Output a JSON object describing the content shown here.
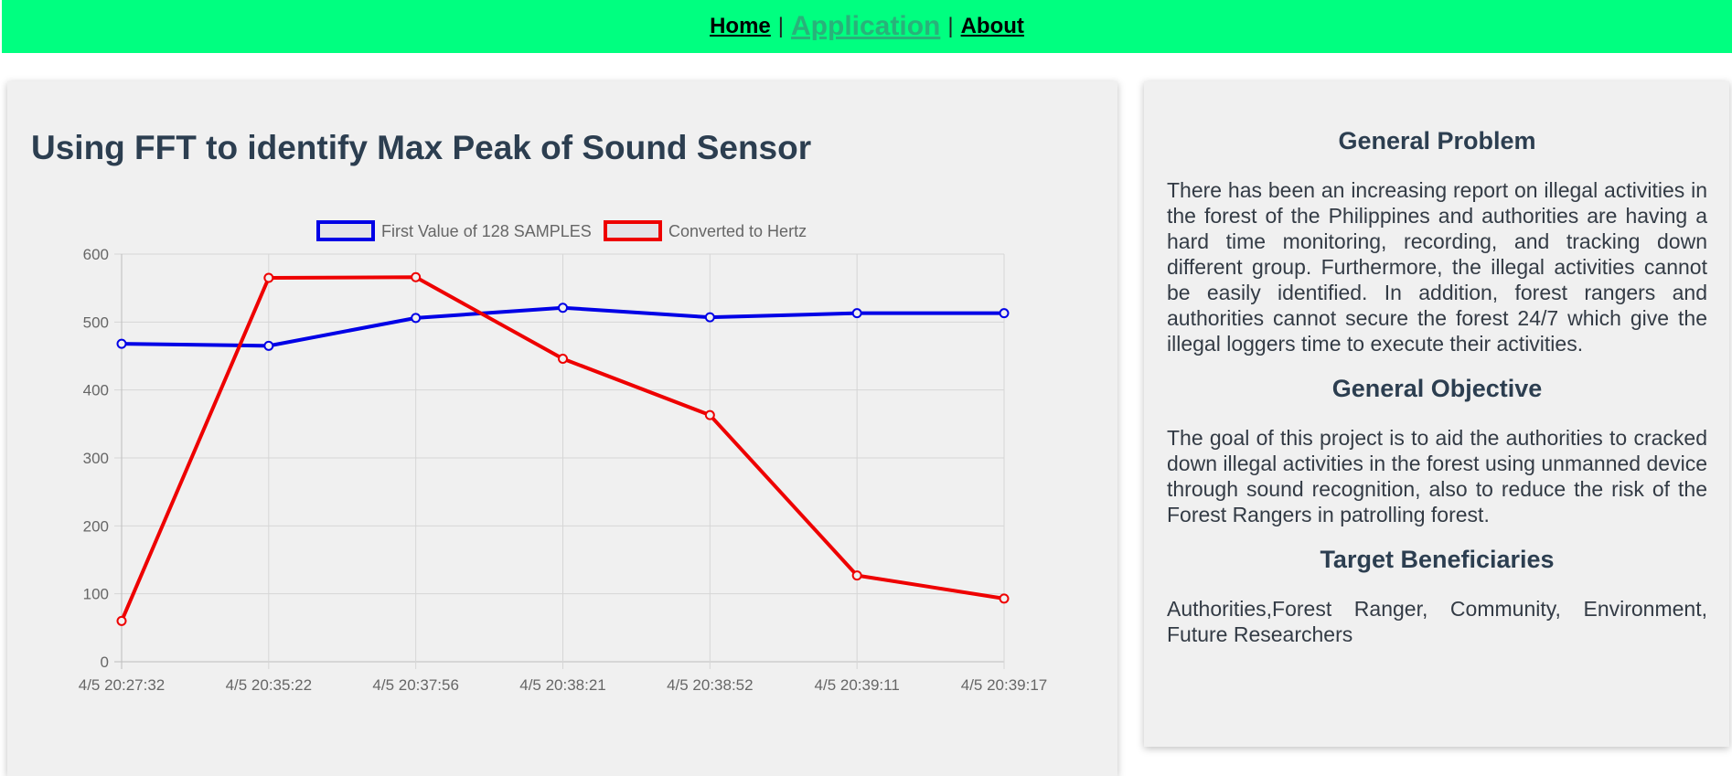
{
  "nav": {
    "home": "Home",
    "application": "Application",
    "about": "About",
    "separator": "|"
  },
  "main": {
    "title": "Using FFT to identify Max Peak of Sound Sensor"
  },
  "side": {
    "problem_title": "General Problem",
    "problem_text": "There has been an increasing report on illegal activities in the forest of the Philippines and authorities are having a hard time monitoring, recording, and tracking down different group. Furthermore, the illegal activities cannot be easily identified. In addition, forest rangers and authorities cannot secure the forest 24/7 which give the illegal loggers time to execute their activities.",
    "objective_title": "General Objective",
    "objective_text": "The goal of this project is to aid the authorities to cracked down illegal activities in the forest using unmanned device through sound recognition, also to reduce the risk of the Forest Rangers in patrolling forest.",
    "beneficiaries_title": "Target Beneficiaries",
    "beneficiaries_text": "Authorities,Forest Ranger, Community, Environment, Future Researchers"
  },
  "chart_data": {
    "type": "line",
    "categories": [
      "4/5 20:27:32",
      "4/5 20:35:22",
      "4/5 20:37:56",
      "4/5 20:38:21",
      "4/5 20:38:52",
      "4/5 20:39:11",
      "4/5 20:39:17"
    ],
    "series": [
      {
        "name": "First Value of 128 SAMPLES",
        "color": "#0000e6",
        "values": [
          468,
          465,
          506,
          521,
          507,
          513,
          513
        ]
      },
      {
        "name": "Converted to Hertz",
        "color": "#ee0000",
        "values": [
          60,
          565,
          566,
          446,
          363,
          127,
          93
        ]
      }
    ],
    "yticks": [
      0,
      100,
      200,
      300,
      400,
      500,
      600
    ],
    "ylim": [
      0,
      600
    ],
    "grid": true,
    "legend": "top-center"
  }
}
